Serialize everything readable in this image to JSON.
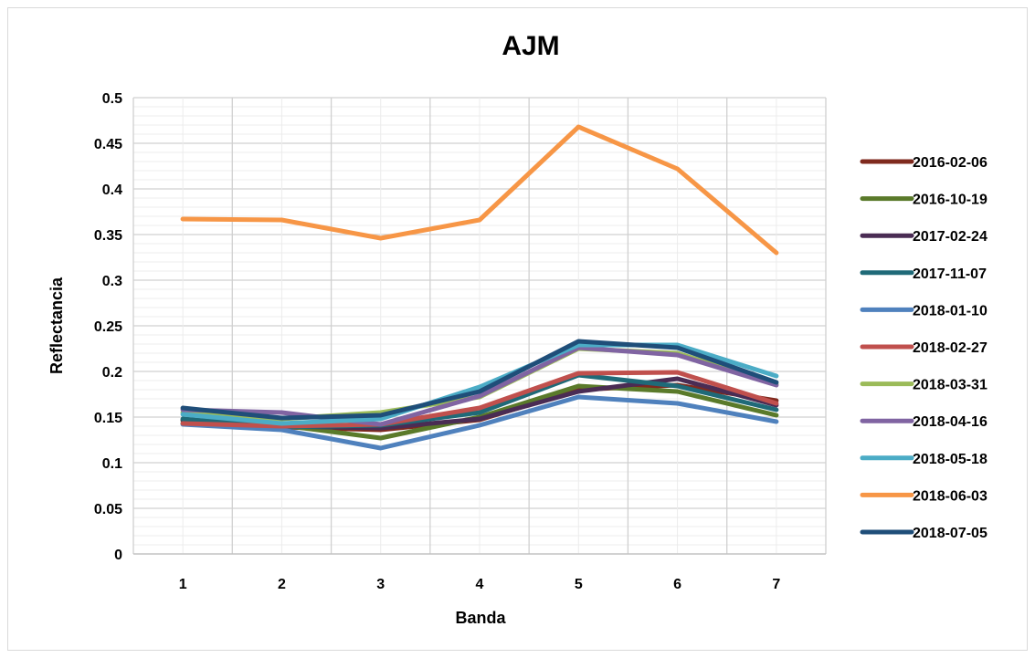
{
  "chart_data": {
    "type": "line",
    "title": "AJM",
    "xlabel": "Banda",
    "ylabel": "Reflectancia",
    "x": [
      1,
      2,
      3,
      4,
      5,
      6,
      7
    ],
    "x_tick_labels": [
      "1",
      "2",
      "3",
      "4",
      "5",
      "6",
      "7"
    ],
    "ylim": [
      0,
      0.5
    ],
    "y_tick_labels": [
      "0",
      "0.05",
      "0.1",
      "0.15",
      "0.2",
      "0.25",
      "0.3",
      "0.35",
      "0.4",
      "0.45",
      "0.5"
    ],
    "y_ticks": [
      0,
      0.05,
      0.1,
      0.15,
      0.2,
      0.25,
      0.3,
      0.35,
      0.4,
      0.45,
      0.5
    ],
    "grid": true,
    "legend_position": "right",
    "series": [
      {
        "name": "2016-02-06",
        "color": "#7f2a1e",
        "values": [
          0.143,
          0.139,
          0.136,
          0.147,
          0.18,
          0.185,
          0.168
        ]
      },
      {
        "name": "2016-10-19",
        "color": "#5a7a2a",
        "values": [
          0.146,
          0.141,
          0.127,
          0.15,
          0.184,
          0.178,
          0.152
        ]
      },
      {
        "name": "2017-02-24",
        "color": "#4a2c54",
        "values": [
          0.147,
          0.14,
          0.138,
          0.148,
          0.178,
          0.192,
          0.163
        ]
      },
      {
        "name": "2017-11-07",
        "color": "#1f6a78",
        "values": [
          0.148,
          0.139,
          0.141,
          0.155,
          0.196,
          0.184,
          0.158
        ]
      },
      {
        "name": "2018-01-10",
        "color": "#4f81bd",
        "values": [
          0.142,
          0.136,
          0.116,
          0.141,
          0.172,
          0.165,
          0.145
        ]
      },
      {
        "name": "2018-02-27",
        "color": "#c0504d",
        "values": [
          0.143,
          0.14,
          0.142,
          0.16,
          0.198,
          0.199,
          0.165
        ]
      },
      {
        "name": "2018-03-31",
        "color": "#9bbb59",
        "values": [
          0.155,
          0.148,
          0.155,
          0.172,
          0.225,
          0.22,
          0.186
        ]
      },
      {
        "name": "2018-04-16",
        "color": "#8064a2",
        "values": [
          0.158,
          0.155,
          0.142,
          0.173,
          0.226,
          0.218,
          0.185
        ]
      },
      {
        "name": "2018-05-18",
        "color": "#4bacc6",
        "values": [
          0.153,
          0.143,
          0.148,
          0.183,
          0.229,
          0.229,
          0.195
        ]
      },
      {
        "name": "2018-06-03",
        "color": "#f79646",
        "values": [
          0.367,
          0.366,
          0.346,
          0.366,
          0.468,
          0.422,
          0.33
        ]
      },
      {
        "name": "2018-07-05",
        "color": "#1f4e79",
        "values": [
          0.16,
          0.149,
          0.152,
          0.178,
          0.233,
          0.226,
          0.188
        ]
      }
    ]
  }
}
